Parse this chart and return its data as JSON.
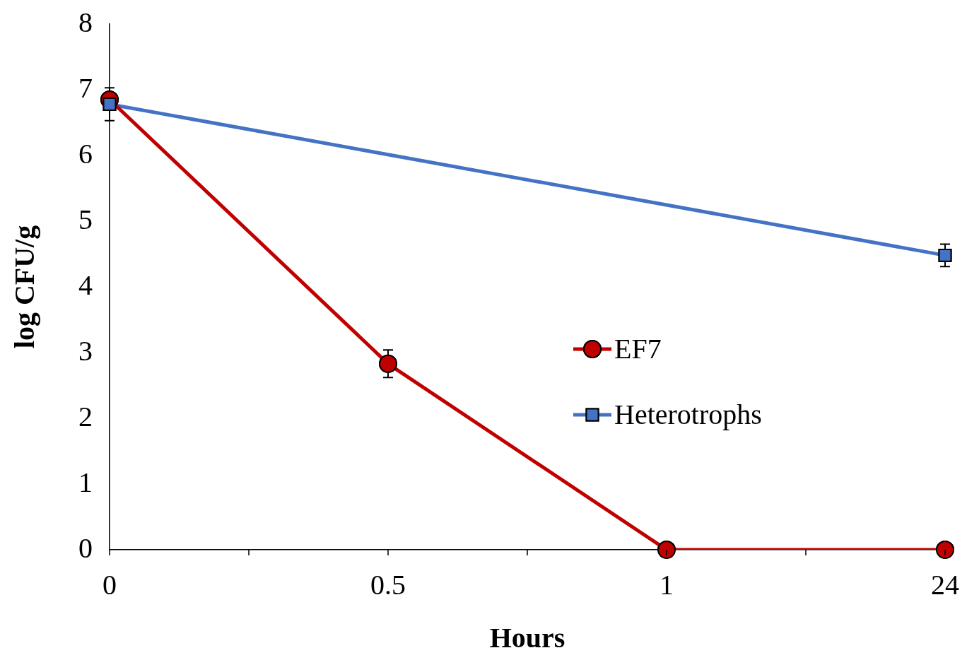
{
  "chart_data": {
    "type": "line",
    "xlabel": "Hours",
    "ylabel": "log CFU/g",
    "categories": [
      "0",
      "0.5",
      "1",
      "24"
    ],
    "series": [
      {
        "name": "EF7",
        "color": "#c00000",
        "marker": "circle",
        "values": [
          6.85,
          2.83,
          0,
          0
        ],
        "errors": [
          null,
          0.21,
          null,
          null
        ]
      },
      {
        "name": "Heterotrophs",
        "color": "#4472c4",
        "marker": "square",
        "values": [
          6.78,
          null,
          null,
          4.48
        ],
        "errors": [
          0.25,
          null,
          null,
          0.17
        ]
      }
    ],
    "ylim": [
      0,
      8
    ],
    "yticks": [
      0,
      1,
      2,
      3,
      4,
      5,
      6,
      7,
      8
    ],
    "grid": false,
    "legend": "right",
    "line_style": "solid"
  }
}
